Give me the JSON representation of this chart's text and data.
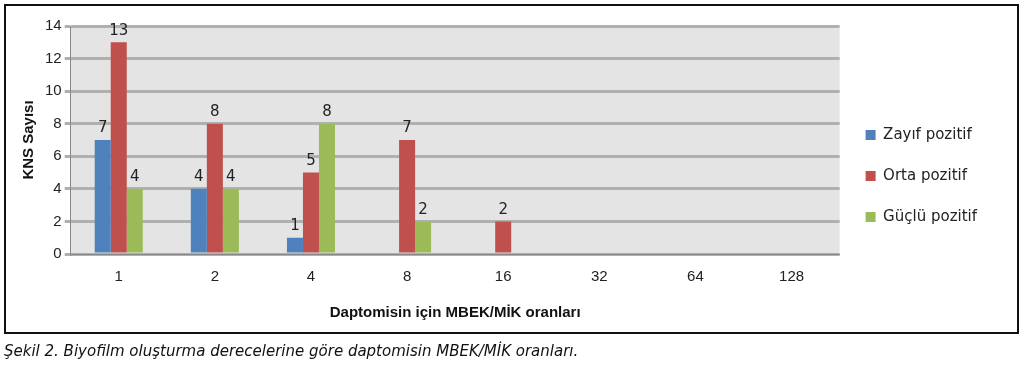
{
  "chart_data": {
    "type": "bar",
    "xlabel": "Daptomisin için MBEK/MİK oranları",
    "ylabel": "KNS Sayısı",
    "categories": [
      "1",
      "2",
      "4",
      "8",
      "16",
      "32",
      "64",
      "128"
    ],
    "series": [
      {
        "name": "Zayıf pozitif",
        "color": "#4f81bd",
        "values": [
          7,
          4,
          1,
          null,
          null,
          null,
          null,
          null
        ]
      },
      {
        "name": "Orta pozitif",
        "color": "#c0504d",
        "values": [
          13,
          8,
          5,
          7,
          2,
          null,
          null,
          null
        ]
      },
      {
        "name": "Güçlü pozitif",
        "color": "#9bbb59",
        "values": [
          4,
          4,
          8,
          2,
          null,
          null,
          null,
          null
        ]
      }
    ],
    "ylim": [
      0,
      14
    ],
    "yticks": [
      0,
      2,
      4,
      6,
      8,
      10,
      12,
      14
    ],
    "grid": "y",
    "legend": "right",
    "data_labels": true,
    "annotations": [
      "Şekil 2. Biyofilm oluşturma derecelerine göre daptomisin MBEK/MİK oranları."
    ]
  }
}
